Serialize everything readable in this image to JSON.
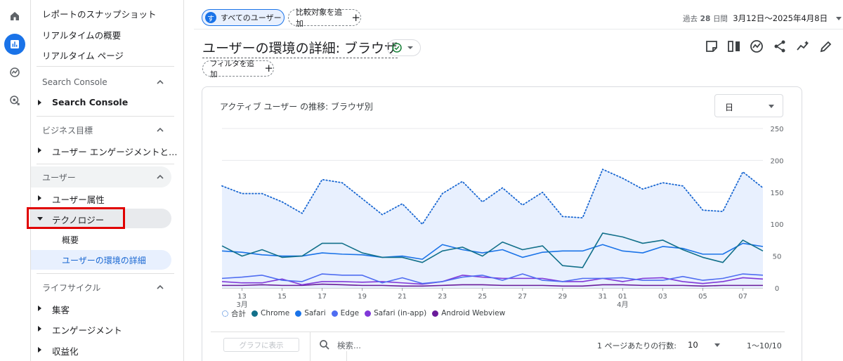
{
  "nav": {
    "links": [
      "レポートのスナップショット",
      "リアルタイムの概要",
      "リアルタイム ページ"
    ],
    "sections": [
      {
        "title": "Search Console",
        "items": [
          {
            "label": "Search Console"
          }
        ]
      },
      {
        "title": "ビジネス目標",
        "items": [
          {
            "label": "ユーザー エンゲージメントと…"
          }
        ]
      },
      {
        "title": "ユーザー",
        "items": [
          {
            "label": "ユーザー属性"
          },
          {
            "label": "テクノロジー",
            "sub": [
              "概要",
              "ユーザーの環境の詳細"
            ]
          }
        ]
      },
      {
        "title": "ライフサイクル",
        "items": [
          {
            "label": "集客"
          },
          {
            "label": "エンゲージメント"
          },
          {
            "label": "収益化"
          }
        ]
      }
    ]
  },
  "header": {
    "segment_chip": "すべてのユーザー",
    "segment_dot": "す",
    "add_compare": "比較対象を追加",
    "date_prefix": "過去",
    "date_days": "28",
    "date_unit": "日間",
    "date_range": "3月12日～2025年4月8日"
  },
  "page": {
    "title": "ユーザーの環境の詳細: ブラウザ",
    "add_filter": "フィルタを追加"
  },
  "card": {
    "title": "アクティブ ユーザー の推移: ブラウザ別",
    "period": "日"
  },
  "chart_data": {
    "type": "line",
    "title": "アクティブ ユーザー の推移: ブラウザ別",
    "x": [
      "3月12日",
      "3月13日",
      "3月14日",
      "3月15日",
      "3月16日",
      "3月17日",
      "3月18日",
      "3月19日",
      "3月20日",
      "3月21日",
      "3月22日",
      "3月23日",
      "3月24日",
      "3月25日",
      "3月26日",
      "3月27日",
      "3月28日",
      "3月29日",
      "3月30日",
      "3月31日",
      "4月1日",
      "4月2日",
      "4月3日",
      "4月4日",
      "4月5日",
      "4月6日",
      "4月7日",
      "4月8日"
    ],
    "x_tick_labels": [
      {
        "label": "13",
        "sub": "3月",
        "index": 1
      },
      {
        "label": "15",
        "index": 3
      },
      {
        "label": "17",
        "index": 5
      },
      {
        "label": "19",
        "index": 7
      },
      {
        "label": "21",
        "index": 9
      },
      {
        "label": "23",
        "index": 11
      },
      {
        "label": "25",
        "index": 13
      },
      {
        "label": "27",
        "index": 15
      },
      {
        "label": "29",
        "index": 17
      },
      {
        "label": "31",
        "index": 19
      },
      {
        "label": "01",
        "sub": "4月",
        "index": 20
      },
      {
        "label": "03",
        "index": 22
      },
      {
        "label": "05",
        "index": 24
      },
      {
        "label": "07",
        "index": 26
      }
    ],
    "y_ticks": [
      0,
      50,
      100,
      150,
      200,
      250
    ],
    "ylim": [
      0,
      250
    ],
    "grid": true,
    "legend_position": "bottom-left",
    "series": [
      {
        "name": "合計",
        "color": "#1967d2",
        "style": "dotted",
        "area": true,
        "values": [
          160,
          148,
          148,
          135,
          117,
          170,
          165,
          140,
          115,
          132,
          100,
          148,
          167,
          135,
          157,
          130,
          150,
          112,
          110,
          186,
          172,
          155,
          165,
          160,
          122,
          120,
          182,
          157
        ]
      },
      {
        "name": "Chrome",
        "color": "#12708a",
        "style": "solid",
        "values": [
          66,
          50,
          60,
          48,
          50,
          70,
          70,
          55,
          48,
          48,
          40,
          58,
          64,
          50,
          72,
          60,
          66,
          35,
          32,
          86,
          80,
          70,
          75,
          60,
          48,
          40,
          75,
          58
        ]
      },
      {
        "name": "Safari",
        "color": "#1a73e8",
        "style": "solid",
        "values": [
          58,
          56,
          52,
          50,
          50,
          55,
          53,
          52,
          48,
          50,
          45,
          68,
          60,
          55,
          60,
          48,
          56,
          58,
          58,
          68,
          58,
          55,
          65,
          62,
          53,
          53,
          70,
          65
        ]
      },
      {
        "name": "Edge",
        "color": "#4f6df1",
        "style": "solid",
        "values": [
          15,
          17,
          20,
          12,
          10,
          22,
          20,
          20,
          8,
          16,
          7,
          10,
          17,
          20,
          12,
          22,
          12,
          10,
          15,
          15,
          16,
          12,
          12,
          18,
          12,
          15,
          22,
          20
        ]
      },
      {
        "name": "Safari (in-app)",
        "color": "#8038d8",
        "style": "solid",
        "values": [
          10,
          8,
          8,
          14,
          5,
          10,
          10,
          9,
          10,
          8,
          6,
          10,
          20,
          17,
          15,
          15,
          15,
          10,
          10,
          15,
          10,
          15,
          16,
          10,
          7,
          10,
          16,
          14
        ]
      },
      {
        "name": "Android Webview",
        "color": "#6a1b9a",
        "style": "solid",
        "values": [
          4,
          4,
          5,
          4,
          4,
          6,
          5,
          4,
          4,
          3,
          3,
          4,
          5,
          5,
          4,
          4,
          4,
          3,
          3,
          5,
          5,
          4,
          4,
          4,
          3,
          4,
          4,
          4
        ]
      }
    ]
  },
  "table": {
    "graph_button": "グラフに表示",
    "search_placeholder": "検索...",
    "rows_per_page_label": "1 ページあたりの行数:",
    "rows_per_page": "10",
    "page_range": "1～10/10"
  }
}
